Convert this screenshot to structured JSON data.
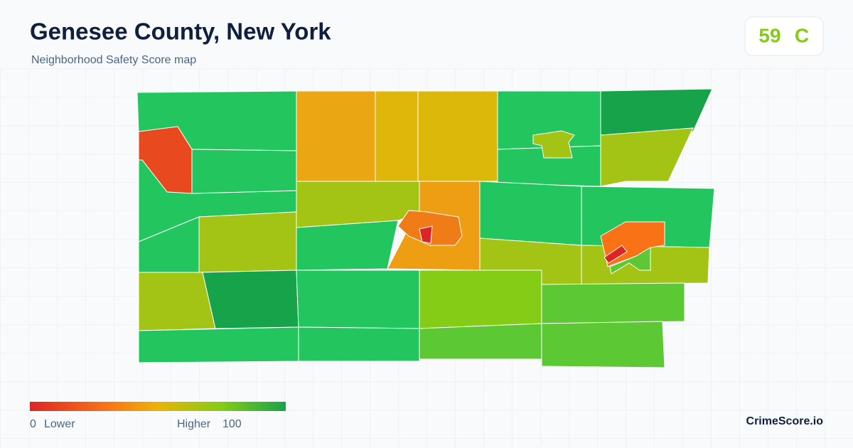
{
  "header": {
    "title": "Genesee County, New York",
    "subtitle": "Neighborhood Safety Score map"
  },
  "score": {
    "value": 59,
    "grade": "C"
  },
  "legend": {
    "min": 0,
    "min_label": "Lower",
    "max_label": "Higher",
    "max": 100
  },
  "brand": "CrimeScore.io"
}
